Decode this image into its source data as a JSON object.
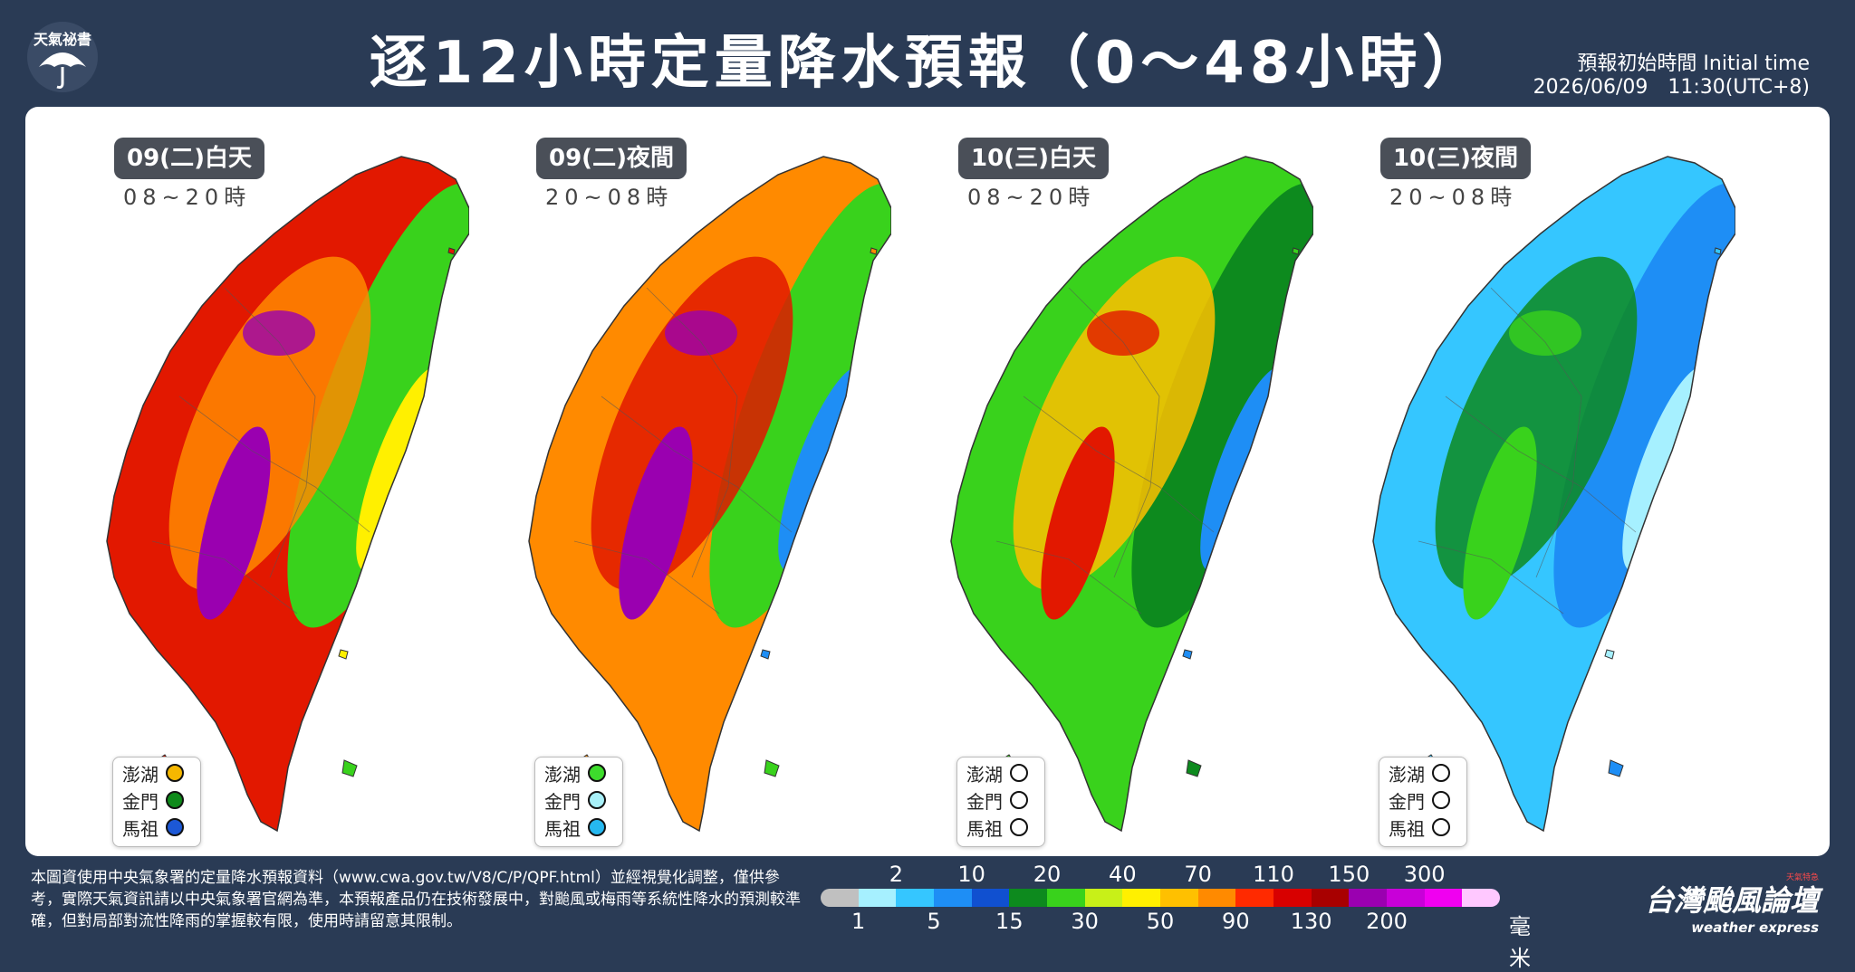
{
  "header": {
    "logo_text": "天氣祕書",
    "title": "逐12小時定量降水預報（0～48小時）",
    "initial_time_label": "預報初始時間 Initial time",
    "initial_time_value": "2026/06/09　11:30(UTC+8)"
  },
  "panels": [
    {
      "period": "09(二)白天",
      "hours": "08~20時",
      "islands": {
        "penghu": "#f5b700",
        "kinmen": "#0e8a1a",
        "matsu": "#1c58d6"
      }
    },
    {
      "period": "09(二)夜間",
      "hours": "20~08時",
      "islands": {
        "penghu": "#3ddc2c",
        "kinmen": "#a8f0f8",
        "matsu": "#26b8f0"
      }
    },
    {
      "period": "10(三)白天",
      "hours": "08~20時",
      "islands": {
        "penghu": "#ffffff",
        "kinmen": "#ffffff",
        "matsu": "#ffffff"
      }
    },
    {
      "period": "10(三)夜間",
      "hours": "20~08時",
      "islands": {
        "penghu": "#ffffff",
        "kinmen": "#ffffff",
        "matsu": "#ffffff"
      }
    }
  ],
  "island_labels": {
    "penghu": "澎湖",
    "kinmen": "金門",
    "matsu": "馬祖"
  },
  "footer_note": "本圖資使用中央氣象署的定量降水預報資料（www.cwa.gov.tw/V8/C/P/QPF.html）並經視覺化調整，僅供參考，實際天氣資訊請以中央氣象署官網為準，本預報產品仍在技術發展中，對颱風或梅雨等系統性降水的預測較準確，但對局部對流性降雨的掌握較有限，使用時請留意其限制。",
  "legend": {
    "top_labels": [
      "2",
      "10",
      "20",
      "40",
      "70",
      "110",
      "150",
      "300"
    ],
    "bottom_labels": [
      "1",
      "5",
      "15",
      "30",
      "50",
      "90",
      "130",
      "200"
    ],
    "unit": "毫米",
    "colors": [
      "#c0c0c0",
      "#a6f0ff",
      "#35c6ff",
      "#1e8ef5",
      "#1050d0",
      "#0d8a1e",
      "#39d21c",
      "#c8f018",
      "#fff000",
      "#ffc000",
      "#ff8a00",
      "#ff2a00",
      "#d80000",
      "#a80000",
      "#9a00b0",
      "#c800d8",
      "#f000f0",
      "#ffc8ff"
    ]
  },
  "brand": {
    "name": "台灣颱風論壇",
    "sub": "weather express",
    "tag": "天氣特急"
  },
  "map_colors": {
    "p1": {
      "base": "#e21800",
      "mid": "#ff8a00",
      "hi": "#9a00b0",
      "east": "#39d21c",
      "east2": "#fff000"
    },
    "p2": {
      "base": "#ff8a00",
      "mid": "#e21800",
      "hi": "#9a00b0",
      "east": "#39d21c",
      "east2": "#1e8ef5"
    },
    "p3": {
      "base": "#39d21c",
      "mid": "#ffc000",
      "hi": "#e21800",
      "east": "#0d8a1e",
      "east2": "#1e8ef5"
    },
    "p4": {
      "base": "#35c6ff",
      "mid": "#0d8a1e",
      "hi": "#39d21c",
      "east": "#1e8ef5",
      "east2": "#a6f0ff"
    }
  }
}
